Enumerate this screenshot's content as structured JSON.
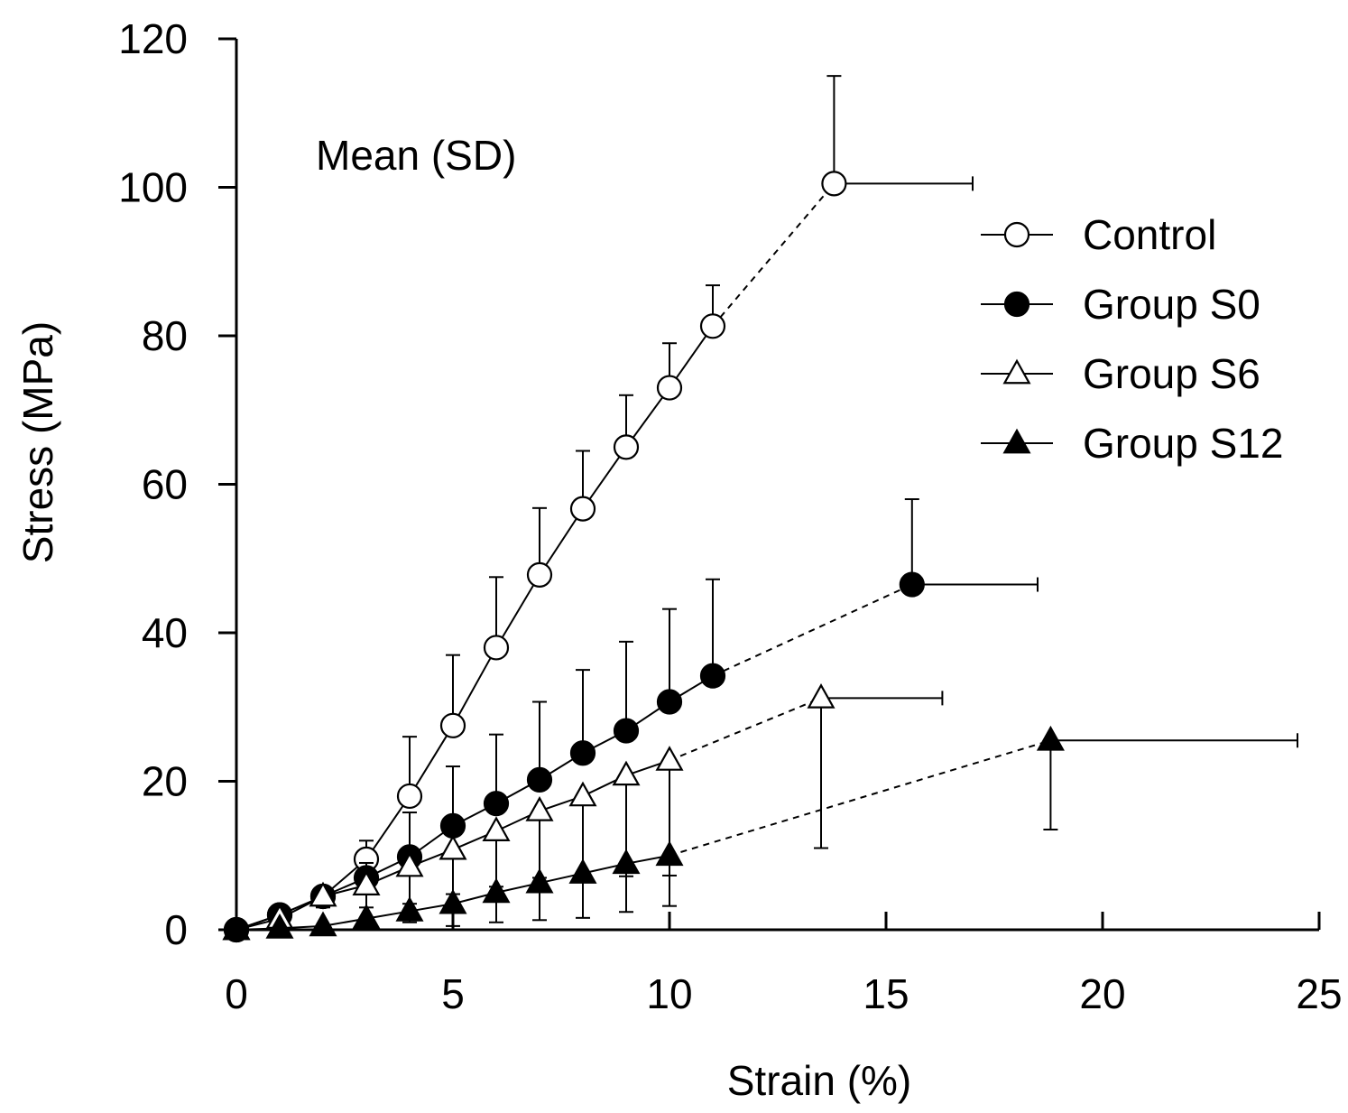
{
  "chart_data": {
    "type": "line",
    "annotation": "Mean (SD)",
    "xlabel": "Strain (%)",
    "ylabel": "Stress (MPa)",
    "xlim": [
      0,
      25
    ],
    "ylim": [
      0,
      120
    ],
    "xticks": [
      "0",
      "5",
      "10",
      "15",
      "20",
      "25"
    ],
    "yticks": [
      "0",
      "20",
      "40",
      "60",
      "80",
      "100",
      "120"
    ],
    "grid": false,
    "legend_position": "top-right",
    "series": [
      {
        "name": "Control",
        "marker": "circle-open",
        "x": [
          0,
          1,
          2,
          3,
          4,
          5,
          6,
          7,
          8,
          9,
          10,
          11
        ],
        "y": [
          0,
          2,
          4.5,
          9.5,
          18,
          27.5,
          38,
          47.8,
          56.7,
          65,
          73,
          81.3
        ],
        "yerr_up": [
          0,
          0.5,
          1,
          2.5,
          8,
          9.5,
          9.5,
          9,
          7.8,
          7,
          6,
          5.5
        ],
        "failure": {
          "x": 13.8,
          "y": 100.5,
          "xerr": 3.2,
          "yerr": 14.5
        }
      },
      {
        "name": "Group S0",
        "marker": "circle-filled",
        "x": [
          0,
          1,
          2,
          3,
          4,
          5,
          6,
          7,
          8,
          9,
          10,
          11
        ],
        "y": [
          0,
          2,
          4.5,
          7,
          9.8,
          14,
          17,
          20.2,
          23.8,
          26.8,
          30.7,
          34.2
        ],
        "yerr_up": [
          0,
          0.5,
          1,
          2,
          6,
          8,
          9.3,
          10.5,
          11.2,
          12,
          12.5,
          13
        ],
        "failure": {
          "x": 15.6,
          "y": 46.5,
          "xerr": 2.9,
          "yerr": 11.5
        }
      },
      {
        "name": "Group S6",
        "marker": "triangle-open",
        "x": [
          0,
          1,
          2,
          3,
          4,
          5,
          6,
          7,
          8,
          9,
          10
        ],
        "y": [
          0,
          1.5,
          4.5,
          6,
          8.5,
          10.8,
          13.3,
          16,
          18,
          20.8,
          22.8
        ],
        "yerr_down": [
          0,
          0.5,
          1.5,
          3,
          5,
          6,
          7.5,
          9,
          10.8,
          13.6,
          15.5
        ],
        "failure": {
          "x": 13.5,
          "y": 31.2,
          "xerr": 2.8,
          "yerr_down": 20.2
        }
      },
      {
        "name": "Group S12",
        "marker": "triangle-filled",
        "x": [
          0,
          1,
          2,
          3,
          4,
          5,
          6,
          7,
          8,
          9,
          10
        ],
        "y": [
          0,
          0.2,
          0.5,
          1.5,
          2.5,
          3.5,
          5,
          6.3,
          7.6,
          8.9,
          10
        ],
        "yerr_down": [
          0,
          0,
          0,
          0.5,
          1.5,
          3,
          4,
          5,
          6,
          6.5,
          6.8
        ],
        "failure": {
          "x": 18.8,
          "y": 25.5,
          "xerr": 5.7,
          "yerr_down": 12
        }
      }
    ]
  }
}
